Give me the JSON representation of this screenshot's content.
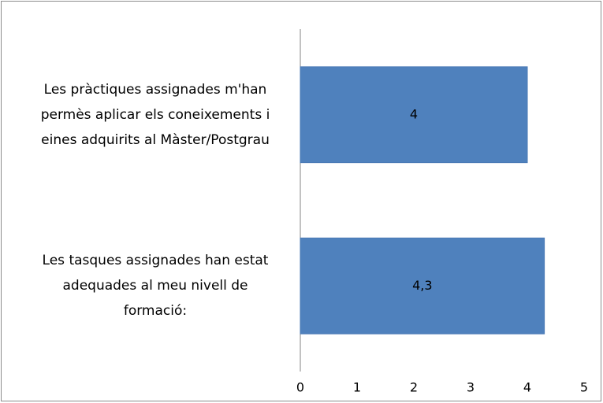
{
  "chart_data": {
    "type": "bar",
    "orientation": "horizontal",
    "categories": [
      "Les pràctiques assignades m'han\npermès aplicar els coneixements i\neines adquirits al Màster/Postgrau",
      "Les tasques assignades han estat\nadequades al meu nivell de\nformació:"
    ],
    "values": [
      4,
      4.3
    ],
    "value_labels": [
      "4",
      "4,3"
    ],
    "color": "#4f81bd",
    "xlim": [
      0,
      5
    ],
    "xticks": [
      0,
      1,
      2,
      3,
      4,
      5
    ],
    "grid": false
  }
}
